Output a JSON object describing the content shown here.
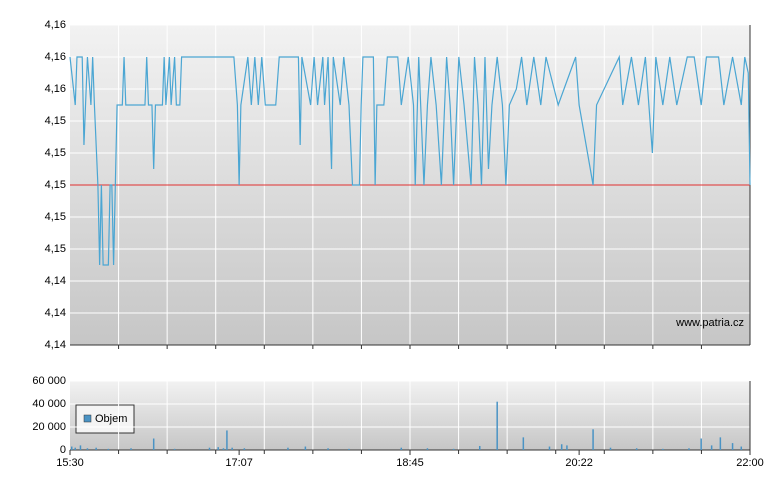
{
  "chart_data": [
    {
      "type": "line",
      "color": "#4ba6d3",
      "x": [
        "15:30",
        "15:33",
        "15:34",
        "15:37",
        "15:38",
        "15:40",
        "15:42",
        "15:43",
        "15:44",
        "15:46",
        "15:47",
        "15:48",
        "15:49",
        "15:52",
        "15:53",
        "15:54",
        "15:55",
        "15:56",
        "15:57",
        "16:00",
        "16:01",
        "16:02",
        "16:13",
        "16:14",
        "16:15",
        "16:17",
        "16:18",
        "16:19",
        "16:23",
        "16:24",
        "16:25",
        "16:27",
        "16:28",
        "16:30",
        "16:31",
        "16:33",
        "16:34",
        "17:04",
        "17:06",
        "17:07",
        "17:08",
        "17:12",
        "17:14",
        "17:16",
        "17:18",
        "17:20",
        "17:22",
        "17:28",
        "17:30",
        "17:41",
        "17:42",
        "17:43",
        "17:48",
        "17:50",
        "17:52",
        "17:55",
        "17:56",
        "17:58",
        "18:00",
        "18:01",
        "18:05",
        "18:07",
        "18:10",
        "18:12",
        "18:16",
        "18:17",
        "18:18",
        "18:24",
        "18:25",
        "18:26",
        "18:30",
        "18:32",
        "18:38",
        "18:40",
        "18:44",
        "18:47",
        "18:48",
        "18:50",
        "18:53",
        "18:55",
        "18:57",
        "19:00",
        "19:03",
        "19:06",
        "19:08",
        "19:10",
        "19:13",
        "19:16",
        "19:20",
        "19:22",
        "19:24",
        "19:26",
        "19:28",
        "19:30",
        "19:32",
        "19:35",
        "19:38",
        "19:40",
        "19:42",
        "19:46",
        "19:49",
        "19:52",
        "19:56",
        "20:00",
        "20:03",
        "20:10",
        "20:20",
        "20:22",
        "20:30",
        "20:32",
        "20:45",
        "20:47",
        "20:52",
        "20:56",
        "21:00",
        "21:02",
        "21:04",
        "21:06",
        "21:10",
        "21:14",
        "21:18",
        "21:24",
        "21:28",
        "21:32",
        "21:35",
        "21:42",
        "21:45",
        "21:50",
        "21:55",
        "21:57",
        "21:59",
        "22:00"
      ],
      "values": [
        4.158,
        4.155,
        4.158,
        4.158,
        4.1525,
        4.158,
        4.155,
        4.158,
        4.155,
        4.15,
        4.145,
        4.15,
        4.145,
        4.145,
        4.15,
        4.15,
        4.145,
        4.15,
        4.155,
        4.155,
        4.158,
        4.155,
        4.155,
        4.158,
        4.155,
        4.155,
        4.151,
        4.155,
        4.155,
        4.158,
        4.155,
        4.158,
        4.155,
        4.158,
        4.155,
        4.155,
        4.158,
        4.158,
        4.155,
        4.15,
        4.155,
        4.158,
        4.155,
        4.158,
        4.155,
        4.158,
        4.155,
        4.155,
        4.158,
        4.158,
        4.1525,
        4.158,
        4.155,
        4.158,
        4.155,
        4.158,
        4.155,
        4.158,
        4.151,
        4.158,
        4.155,
        4.158,
        4.155,
        4.15,
        4.15,
        4.155,
        4.158,
        4.158,
        4.15,
        4.155,
        4.155,
        4.158,
        4.158,
        4.155,
        4.158,
        4.155,
        4.15,
        4.158,
        4.15,
        4.155,
        4.158,
        4.155,
        4.15,
        4.158,
        4.155,
        4.15,
        4.158,
        4.155,
        4.15,
        4.158,
        4.155,
        4.15,
        4.158,
        4.151,
        4.155,
        4.158,
        4.155,
        4.15,
        4.155,
        4.156,
        4.158,
        4.155,
        4.158,
        4.155,
        4.158,
        4.155,
        4.158,
        4.155,
        4.15,
        4.155,
        4.158,
        4.155,
        4.158,
        4.155,
        4.158,
        4.155,
        4.152,
        4.158,
        4.155,
        4.158,
        4.155,
        4.158,
        4.158,
        4.155,
        4.158,
        4.158,
        4.155,
        4.158,
        4.155,
        4.158,
        4.157,
        4.15
      ],
      "xlim": [
        "15:30",
        "22:00"
      ],
      "ylim": [
        4.14,
        4.16
      ],
      "yticks": [
        {
          "value": 4.14,
          "label": "4,14"
        },
        {
          "value": 4.142,
          "label": "4,14"
        },
        {
          "value": 4.144,
          "label": "4,14"
        },
        {
          "value": 4.146,
          "label": "4,15"
        },
        {
          "value": 4.148,
          "label": "4,15"
        },
        {
          "value": 4.15,
          "label": "4,15"
        },
        {
          "value": 4.152,
          "label": "4,15"
        },
        {
          "value": 4.154,
          "label": "4,15"
        },
        {
          "value": 4.156,
          "label": "4,16"
        },
        {
          "value": 4.158,
          "label": "4,16"
        },
        {
          "value": 4.16,
          "label": "4,16"
        }
      ],
      "reference_line": {
        "value": 4.15,
        "color": "#e03030"
      },
      "annotation": "www.patria.cz",
      "grid": true
    },
    {
      "type": "bar",
      "x": [
        "15:31",
        "15:33",
        "15:36",
        "15:40",
        "15:45",
        "15:52",
        "16:05",
        "16:18",
        "16:30",
        "16:50",
        "16:55",
        "16:58",
        "17:00",
        "17:03",
        "17:10",
        "17:35",
        "17:45",
        "17:58",
        "18:10",
        "18:40",
        "18:55",
        "19:10",
        "19:25",
        "19:35",
        "19:50",
        "20:05",
        "20:12",
        "20:15",
        "20:30",
        "20:40",
        "20:55",
        "21:10",
        "21:25",
        "21:32",
        "21:38",
        "21:43",
        "21:50",
        "21:55"
      ],
      "series": [
        {
          "name": "Objem",
          "color": "#4a93c4",
          "values": [
            3000,
            2000,
            4000,
            1500,
            2000,
            1000,
            1500,
            10000,
            1000,
            2000,
            2500,
            1500,
            17000,
            2000,
            1500,
            2000,
            3000,
            1500,
            1000,
            2000,
            1500,
            1000,
            3500,
            42000,
            11000,
            3000,
            5000,
            4000,
            18000,
            2000,
            1500,
            1000,
            1500,
            10000,
            4000,
            11000,
            6000,
            3000
          ]
        }
      ],
      "xlim": [
        "15:30",
        "22:00"
      ],
      "xticks": [
        "15:30",
        "17:07",
        "18:45",
        "20:22",
        "22:00"
      ],
      "ylim": [
        0,
        60000
      ],
      "yticks": [
        0,
        {
          "value": 20000,
          "label": "20 000"
        },
        {
          "value": 40000,
          "label": "40 000"
        },
        {
          "value": 60000,
          "label": "60 000"
        }
      ],
      "grid": true
    }
  ]
}
